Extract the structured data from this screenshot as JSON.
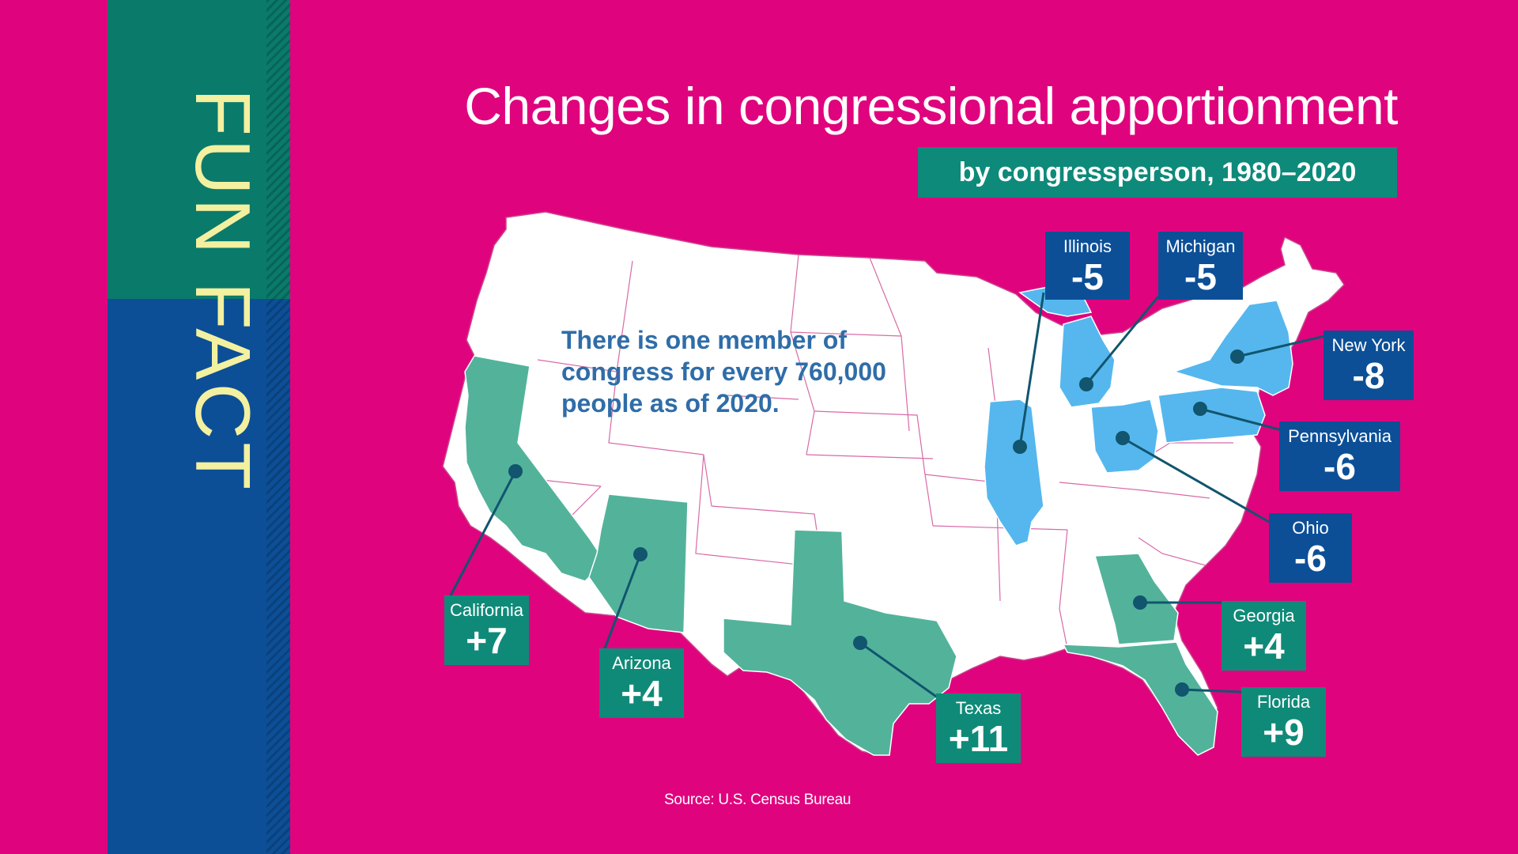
{
  "side_banner": {
    "text": "FUN FACT"
  },
  "title": "Changes in congressional apportionment",
  "subtitle": "by congressperson,  1980–2020",
  "fact": "There is one member of congress for every 760,000 people as of 2020.",
  "source": "Source: U.S. Census Bureau",
  "colors": {
    "background": "#e0037e",
    "gain": "#52b39a",
    "loss": "#55b7ee",
    "gain_label": "#0f8a78",
    "loss_label": "#0c4f97",
    "banner_text": "#f3f0a0"
  },
  "states": [
    {
      "name": "Illinois",
      "change": "-5",
      "direction": "loss"
    },
    {
      "name": "Michigan",
      "change": "-5",
      "direction": "loss"
    },
    {
      "name": "New York",
      "change": "-8",
      "direction": "loss"
    },
    {
      "name": "Pennsylvania",
      "change": "-6",
      "direction": "loss"
    },
    {
      "name": "Ohio",
      "change": "-6",
      "direction": "loss"
    },
    {
      "name": "California",
      "change": "+7",
      "direction": "gain"
    },
    {
      "name": "Arizona",
      "change": "+4",
      "direction": "gain"
    },
    {
      "name": "Texas",
      "change": "+11",
      "direction": "gain"
    },
    {
      "name": "Georgia",
      "change": "+4",
      "direction": "gain"
    },
    {
      "name": "Florida",
      "change": "+9",
      "direction": "gain"
    }
  ]
}
